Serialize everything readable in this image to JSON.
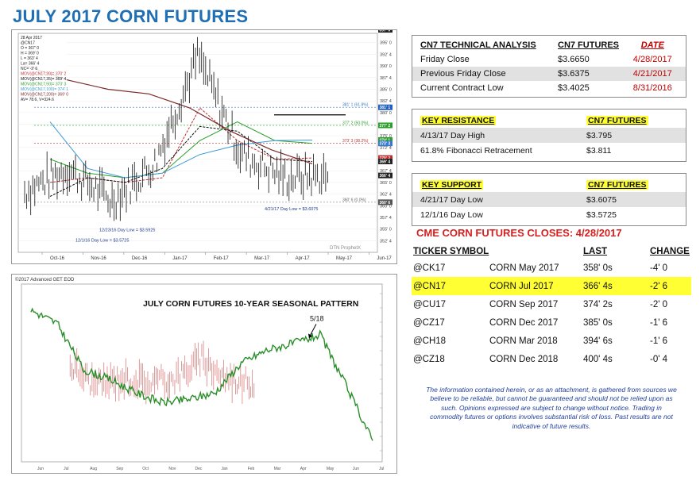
{
  "title": "JULY 2017 CORN FUTURES",
  "price_chart": {
    "info_lines": [
      "28 Apr 2017",
      "@CN17",
      "O = 367' 0",
      "H = 369' 0",
      "L = 363' 4",
      "La= 366' 4",
      "NC= -2' 6",
      "MOV(@CN17,20)= 370' 2",
      "MOV(@CN17,35)= 369' 4",
      "MOV(@CN17,50)= 373' 3",
      "MOV(@CN17,100)= 374' 1",
      "MOV(@CN17,200)= 369' 0",
      "AV= 78.6, V=324.6"
    ],
    "annotations": {
      "high": "2/16/17 Day High= $3.9375",
      "low1": "12/23/16 Day Low = $3.5925",
      "low2": "12/1/16 Day Low = $3.5725",
      "low3": "4/21/17 Day Low = $3.6075",
      "fib100": "397' 6 (100.0%)",
      "fib618": "381' 1 (61.8%)",
      "fib50": "377' 2 (50.0%)",
      "fib382": "373' 3 (38.2%)",
      "fib0": "360' 6 (0.0%)"
    },
    "watermark": "DTN ProphetX",
    "x_labels": [
      "Oct-16",
      "Nov-16",
      "Dec-16",
      "Jan-17",
      "Feb-17",
      "Mar-17",
      "Apr-17",
      "May-17",
      "Jun-17"
    ],
    "y_labels": [
      "395' 0",
      "392' 4",
      "390' 0",
      "387' 4",
      "385' 0",
      "382' 4",
      "380' 0",
      "377' 4",
      "375' 0",
      "372' 4",
      "370' 0",
      "367' 4",
      "365' 0",
      "362' 4",
      "360' 0",
      "357' 4",
      "355' 0",
      "352' 4"
    ],
    "price_tags": [
      {
        "text": "397' 6",
        "color": "#222222"
      },
      {
        "text": "381' 1",
        "color": "#2060c0"
      },
      {
        "text": "377' 2",
        "color": "#2aa02a"
      },
      {
        "text": "374' 1",
        "color": "#2aa02a"
      },
      {
        "text": "373' 3",
        "color": "#3a78c8"
      },
      {
        "text": "370' 2",
        "color": "#c03030"
      },
      {
        "text": "369' 4",
        "color": "#222222"
      },
      {
        "text": "366' 4",
        "color": "#222222"
      },
      {
        "text": "360' 6",
        "color": "#555555"
      }
    ]
  },
  "seasonal_chart": {
    "header": "©2017 Advanced GET EOD",
    "title": "JULY CORN FUTURES 10-YEAR SEASONAL PATTERN",
    "marker": "5/18"
  },
  "technical": {
    "headers": [
      "CN7 TECHNICAL ANALYSIS",
      "CN7 FUTURES",
      "DATE"
    ],
    "rows": [
      {
        "label": "Friday Close",
        "value": "$3.6650",
        "date": "4/28/2017"
      },
      {
        "label": "Previous Friday Close",
        "value": "$3.6375",
        "date": "4/21/2017"
      },
      {
        "label": "Current Contract Low",
        "value": "$3.4025",
        "date": "8/31/2016"
      }
    ]
  },
  "resistance": {
    "headers": [
      "KEY RESISTANCE",
      "CN7 FUTURES"
    ],
    "rows": [
      {
        "label": "4/13/17 Day High",
        "value": "$3.795"
      },
      {
        "label": "61.8% Fibonacci Retracement",
        "value": "$3.811"
      }
    ]
  },
  "support": {
    "headers": [
      "KEY SUPPORT",
      "CN7 FUTURES"
    ],
    "rows": [
      {
        "label": "4/21/17 Day Low",
        "value": "$3.6075"
      },
      {
        "label": "12/1/16 Day Low",
        "value": "$3.5725"
      }
    ]
  },
  "closes": {
    "title": "CME CORN FUTURES CLOSES:  4/28/2017",
    "headers": [
      "TICKER SYMBOL",
      "",
      "LAST",
      "CHANGE"
    ],
    "rows": [
      {
        "ticker": "@CK17",
        "name": "CORN May 2017",
        "last": "358' 0s",
        "change": "-4' 0",
        "highlight": false
      },
      {
        "ticker": "@CN17",
        "name": "CORN Jul 2017",
        "last": "366' 4s",
        "change": "-2' 6",
        "highlight": true
      },
      {
        "ticker": "@CU17",
        "name": "CORN Sep 2017",
        "last": "374' 2s",
        "change": "-2' 0",
        "highlight": false
      },
      {
        "ticker": "@CZ17",
        "name": "CORN Dec 2017",
        "last": "385' 0s",
        "change": "-1' 6",
        "highlight": false
      },
      {
        "ticker": "@CH18",
        "name": "CORN Mar 2018",
        "last": "394' 6s",
        "change": "-1' 6",
        "highlight": false
      },
      {
        "ticker": "@CZ18",
        "name": "CORN Dec 2018",
        "last": "400' 4s",
        "change": "-0' 4",
        "highlight": false
      }
    ]
  },
  "disclaimer": "The information contained herein, or as an attachment, is gathered from sources we believe to be reliable, but cannot be guaranteed and should not be relied upon as such. Opinions expressed are subject to change without notice. Trading in commodity futures or options involves substantial risk of loss. Past results are not indicative of future results.",
  "chart_data": [
    {
      "type": "line",
      "title": "",
      "x": [
        "Oct-16",
        "Nov-16",
        "Dec-16",
        "Jan-17",
        "Feb-17",
        "Mar-17",
        "Apr-17",
        "May-17"
      ],
      "ylim": [
        350,
        397
      ],
      "series": [
        {
          "name": "@CN17",
          "values": [
            363,
            368,
            361,
            369,
            392,
            371,
            366,
            366.5
          ]
        },
        {
          "name": "MOV(@CN17,20)",
          "values": [
            365,
            366,
            365,
            366,
            381,
            374,
            370,
            370.25
          ]
        },
        {
          "name": "MOV(@CN17,35)",
          "values": [
            362,
            366,
            365,
            368,
            377,
            376,
            370,
            369.5
          ]
        },
        {
          "name": "MOV(@CN17,50)",
          "values": [
            370,
            367,
            366,
            367,
            374,
            378,
            374,
            373.4
          ]
        },
        {
          "name": "MOV(@CN17,100)",
          "values": [
            378,
            368,
            366,
            367,
            371,
            373,
            374,
            374.1
          ]
        },
        {
          "name": "MOV(@CN17,200)",
          "values": [
            390,
            387,
            385,
            384,
            381,
            376,
            372,
            369
          ]
        }
      ],
      "hlines": [
        397.75,
        381.125,
        377.25,
        373.375,
        360.75,
        379.5
      ]
    },
    {
      "type": "line",
      "title": "JULY CORN FUTURES 10-YEAR SEASONAL PATTERN",
      "x": [
        "Jun",
        "Jul",
        "Aug",
        "Sep",
        "Oct",
        "Nov",
        "Dec",
        "Jan",
        "Feb",
        "Mar",
        "Apr",
        "May",
        "Jun",
        "Jul"
      ],
      "series": [
        {
          "name": "Seasonal",
          "values": [
            0.88,
            0.8,
            0.52,
            0.46,
            0.38,
            0.32,
            0.34,
            0.38,
            0.56,
            0.64,
            0.68,
            0.73,
            0.42,
            0.09
          ]
        },
        {
          "name": "CN17",
          "values": [
            null,
            null,
            null,
            0.55,
            0.42,
            0.47,
            0.44,
            0.47,
            0.58,
            0.46,
            0.44,
            null,
            null,
            null
          ]
        }
      ]
    }
  ]
}
